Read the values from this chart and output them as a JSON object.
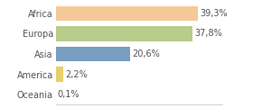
{
  "categories": [
    "Africa",
    "Europa",
    "Asia",
    "America",
    "Oceania"
  ],
  "values": [
    39.3,
    37.8,
    20.6,
    2.2,
    0.1
  ],
  "labels": [
    "39,3%",
    "37,8%",
    "20,6%",
    "2,2%",
    "0,1%"
  ],
  "bar_colors": [
    "#f5c898",
    "#b8cc8c",
    "#7a9ec0",
    "#e8d068",
    "#cccccc"
  ],
  "background_color": "#ffffff",
  "xlim_max": 46,
  "bar_height": 0.72,
  "label_fontsize": 7.0,
  "tick_fontsize": 7.0,
  "text_color": "#555555"
}
